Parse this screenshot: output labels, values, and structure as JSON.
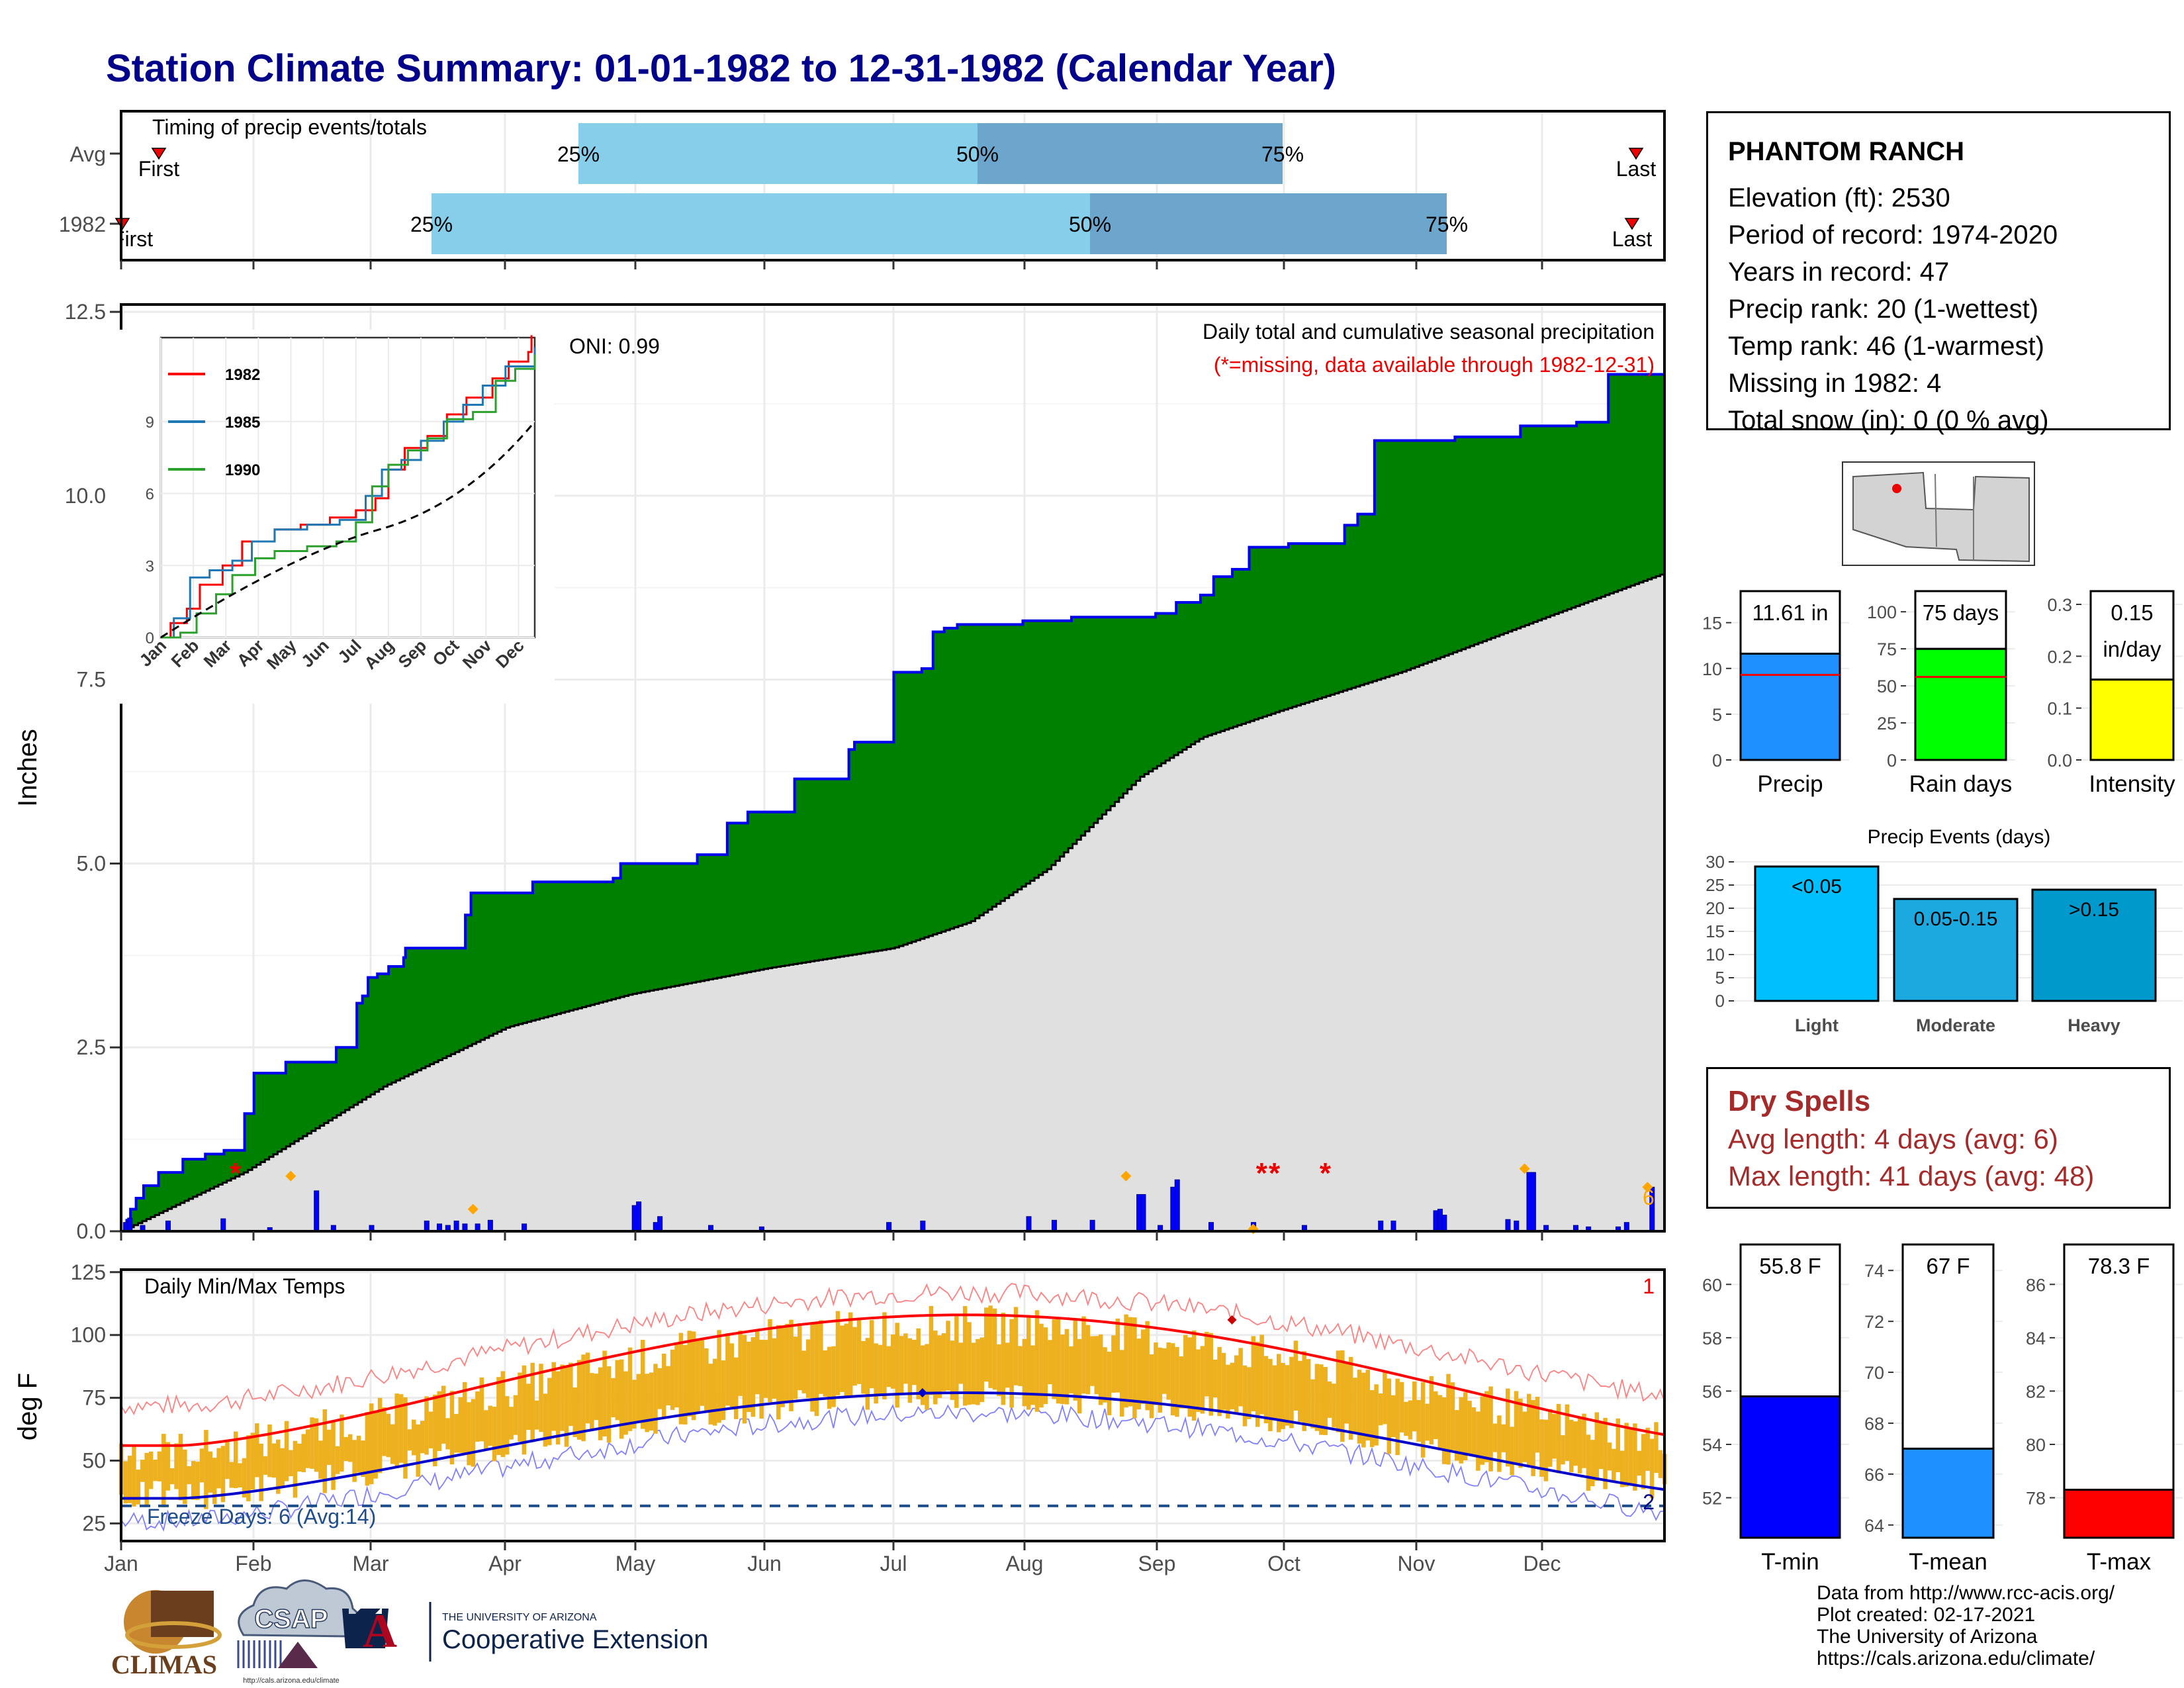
{
  "title": "Station Climate Summary: 01-01-1982 to 12-31-1982 (Calendar Year)",
  "station": {
    "name": "PHANTOM RANCH",
    "lines": [
      "Elevation (ft): 2530",
      "Period of record: 1974-2020",
      "Years in record: 47",
      "Precip rank: 20 (1-wettest)",
      "Temp rank: 46 (1-warmest)",
      "Missing in 1982: 4",
      "Total snow (in): 0 (0 % avg)"
    ]
  },
  "dry_spells": {
    "title": "Dry Spells",
    "avg": "Avg length: 4 days (avg: 6)",
    "max": "Max length: 41 days (avg: 48)"
  },
  "credits": [
    "Data from http://www.rcc-acis.org/",
    "Plot created: 02-17-2021",
    "The University of Arizona",
    "https://cals.arizona.edu/climate/"
  ],
  "logos": {
    "climas": "CLIMAS",
    "csap": "CSAP",
    "csap_url": "http://cals.arizona.edu/climate",
    "ua_small": "THE UNIVERSITY OF ARIZONA",
    "ua_big": "Cooperative Extension"
  },
  "months": [
    "Jan",
    "Feb",
    "Mar",
    "Apr",
    "May",
    "Jun",
    "Jul",
    "Aug",
    "Sep",
    "Oct",
    "Nov",
    "Dec"
  ],
  "colors": {
    "title": "#00008B",
    "cum_obs": "#0000EE",
    "cum_fill": "#008000",
    "avg_fill": "#E0E0E0",
    "daily_bar": "#0000FF",
    "temp_bar": "#EDB120",
    "tmax_avg": "#FF0000",
    "tmin_avg": "#0000CC",
    "q_light": "#87CEEB",
    "q_dark": "#6CA6CD"
  },
  "chart_data": [
    {
      "type": "bar",
      "id": "timing",
      "title": "Timing of precip events/totals",
      "rows": [
        {
          "label": "Avg",
          "q25_day": 119,
          "q50_day": 203,
          "q75_day": 271,
          "first_label": "First",
          "last_label": "Last",
          "first_day": 9,
          "last_day": 363
        },
        {
          "label": "1982",
          "q25_day": 74,
          "q50_day": 226,
          "q75_day": 301,
          "first_label": "First",
          "last_label": "Last",
          "first_day": 1,
          "last_day": 362
        }
      ],
      "quantile_labels": [
        "25%",
        "50%",
        "75%"
      ]
    },
    {
      "type": "area",
      "id": "cumulative",
      "title": "Daily total and cumulative seasonal precipitation",
      "subtitle": "(*=missing, data available through 1982-12-31)",
      "oni": "ONI: 0.99",
      "ylabel": "Inches",
      "ylim": [
        0,
        12.6
      ],
      "yticks": [
        "0.0",
        "2.5",
        "5.0",
        "7.5",
        "10.0",
        "12.5"
      ],
      "cumulative_obs": [
        [
          1,
          0
        ],
        [
          3,
          0.15
        ],
        [
          5,
          0.3
        ],
        [
          8,
          0.45
        ],
        [
          12,
          0.62
        ],
        [
          20,
          0.8
        ],
        [
          33,
          0.98
        ],
        [
          45,
          1.05
        ],
        [
          55,
          1.1
        ],
        [
          66,
          1.6
        ],
        [
          71,
          2.15
        ],
        [
          88,
          2.3
        ],
        [
          115,
          2.5
        ],
        [
          126,
          3.1
        ],
        [
          129,
          3.2
        ],
        [
          132,
          3.45
        ],
        [
          137,
          3.5
        ],
        [
          143,
          3.6
        ],
        [
          151,
          3.72
        ],
        [
          152,
          3.85
        ],
        [
          175,
          3.85
        ],
        [
          184,
          4.3
        ],
        [
          187,
          4.6
        ],
        [
          220,
          4.75
        ],
        [
          263,
          4.8
        ],
        [
          267,
          5.0
        ],
        [
          308,
          5.12
        ],
        [
          324,
          5.55
        ],
        [
          331,
          5.55
        ],
        [
          335,
          5.7
        ],
        [
          360,
          6.15
        ],
        [
          389,
          6.55
        ],
        [
          392,
          6.65
        ],
        [
          413,
          7.6
        ],
        [
          428,
          7.65
        ],
        [
          434,
          8.15
        ],
        [
          440,
          8.2
        ],
        [
          447,
          8.25
        ],
        [
          482,
          8.3
        ],
        [
          508,
          8.35
        ],
        [
          553,
          8.4
        ],
        [
          564,
          8.55
        ],
        [
          577,
          8.65
        ],
        [
          584,
          8.9
        ],
        [
          594,
          9.0
        ],
        [
          603,
          9.3
        ],
        [
          624,
          9.35
        ],
        [
          654,
          9.6
        ],
        [
          661,
          9.75
        ],
        [
          670,
          10.75
        ],
        [
          713,
          10.8
        ],
        [
          748,
          10.95
        ],
        [
          778,
          11.0
        ],
        [
          795,
          11.65
        ],
        [
          825,
          11.65
        ]
      ],
      "cumulative_avg_end": 8.95,
      "daily_bars": [
        [
          2,
          0.12
        ],
        [
          3,
          0.18
        ],
        [
          6,
          0.08
        ],
        [
          12,
          0.14
        ],
        [
          25,
          0.17
        ],
        [
          36,
          0.05
        ],
        [
          47,
          0.55
        ],
        [
          51,
          0.08
        ],
        [
          60,
          0.08
        ],
        [
          73,
          0.14
        ],
        [
          76,
          0.1
        ],
        [
          78,
          0.08
        ],
        [
          80,
          0.14
        ],
        [
          82,
          0.1
        ],
        [
          85,
          0.1
        ],
        [
          88,
          0.15
        ],
        [
          96,
          0.1
        ],
        [
          122,
          0.35
        ],
        [
          123,
          0.4
        ],
        [
          127,
          0.12
        ],
        [
          128,
          0.2
        ],
        [
          140,
          0.08
        ],
        [
          152,
          0.06
        ],
        [
          182,
          0.12
        ],
        [
          190,
          0.14
        ],
        [
          215,
          0.2
        ],
        [
          221,
          0.15
        ],
        [
          230,
          0.15
        ],
        [
          241,
          0.5
        ],
        [
          242,
          0.5
        ],
        [
          246,
          0.08
        ],
        [
          249,
          0.6
        ],
        [
          250,
          0.7
        ],
        [
          258,
          0.12
        ],
        [
          268,
          0.12
        ],
        [
          280,
          0.08
        ],
        [
          298,
          0.14
        ],
        [
          301,
          0.14
        ],
        [
          311,
          0.28
        ],
        [
          312,
          0.3
        ],
        [
          313,
          0.22
        ],
        [
          328,
          0.16
        ],
        [
          330,
          0.14
        ],
        [
          333,
          0.8
        ],
        [
          334,
          0.8
        ],
        [
          337,
          0.08
        ],
        [
          344,
          0.08
        ],
        [
          347,
          0.06
        ],
        [
          354,
          0.06
        ],
        [
          356,
          0.12
        ],
        [
          362,
          0.6
        ]
      ],
      "missing_days": [
        28,
        270,
        273,
        285
      ],
      "orange_markers": [
        [
          41,
          0.75
        ],
        [
          84,
          0.3
        ],
        [
          238,
          0.75
        ],
        [
          268,
          0.03
        ],
        [
          332,
          0.85
        ],
        [
          361,
          0.6
        ]
      ],
      "corner_label": "6",
      "inset": {
        "type": "line",
        "series": [
          {
            "name": "1982",
            "color": "#FF0000"
          },
          {
            "name": "1985",
            "color": "#1F77B4"
          },
          {
            "name": "1990",
            "color": "#2CA02C"
          }
        ],
        "yticks": [
          "0",
          "3",
          "6",
          "9"
        ]
      }
    },
    {
      "type": "bar",
      "id": "temps",
      "title": "Daily Min/Max Temps",
      "ylabel": "deg F",
      "ylim": [
        18,
        126
      ],
      "yticks": [
        "25",
        "50",
        "75",
        "100",
        "125"
      ],
      "freeze_label": "Freeze Days: 6 (Avg:14)",
      "top_right_label": "1",
      "bottom_right_label": "2",
      "freeze_line": 32
    },
    {
      "type": "bar",
      "id": "precip_small",
      "categories": [
        "Precip"
      ],
      "values": [
        11.61
      ],
      "avg": 9.3,
      "label_top": "11.61 in",
      "ylim": [
        0,
        17
      ],
      "yticks": [
        "0",
        "5",
        "10",
        "15"
      ]
    },
    {
      "type": "bar",
      "id": "raindays_small",
      "categories": [
        "Rain days"
      ],
      "values": [
        75
      ],
      "avg": 56,
      "label_top": "75 days",
      "ylim": [
        0,
        105
      ],
      "yticks": [
        "0",
        "25",
        "50",
        "75",
        "100"
      ]
    },
    {
      "type": "bar",
      "id": "intensity_small",
      "categories": [
        "Intensity"
      ],
      "values": [
        0.155
      ],
      "avg": 0.165,
      "label_top": [
        "0.15",
        "in/day"
      ],
      "ylim": [
        0,
        0.3
      ],
      "yticks": [
        "0.0",
        "0.1",
        "0.2",
        "0.3"
      ]
    },
    {
      "type": "bar",
      "id": "events",
      "title": "Precip Events (days)",
      "categories": [
        "Light",
        "Moderate",
        "Heavy"
      ],
      "values": [
        29,
        22,
        24
      ],
      "bar_labels": [
        "<0.05",
        "0.05-0.15",
        ">0.15"
      ],
      "ylim": [
        0,
        30
      ],
      "yticks": [
        "0",
        "5",
        "10",
        "15",
        "20",
        "25",
        "30"
      ]
    },
    {
      "type": "bar",
      "id": "tmin_small",
      "categories": [
        "T-min"
      ],
      "values": [
        55.8
      ],
      "avg": 56.1,
      "label_top": "55.8 F",
      "ylim": [
        50.5,
        61
      ],
      "yticks": [
        "52",
        "54",
        "56",
        "58",
        "60"
      ]
    },
    {
      "type": "bar",
      "id": "tmean_small",
      "categories": [
        "T-mean"
      ],
      "values": [
        67
      ],
      "avg": 69,
      "label_top": "67 F",
      "ylim": [
        63.5,
        74.5
      ],
      "yticks": [
        "64",
        "66",
        "68",
        "70",
        "72",
        "74"
      ]
    },
    {
      "type": "bar",
      "id": "tmax_small",
      "categories": [
        "T-max"
      ],
      "values": [
        78.3
      ],
      "avg": 82,
      "label_top": "78.3 F",
      "ylim": [
        76.5,
        87
      ],
      "yticks": [
        "78",
        "80",
        "82",
        "84",
        "86"
      ]
    }
  ]
}
